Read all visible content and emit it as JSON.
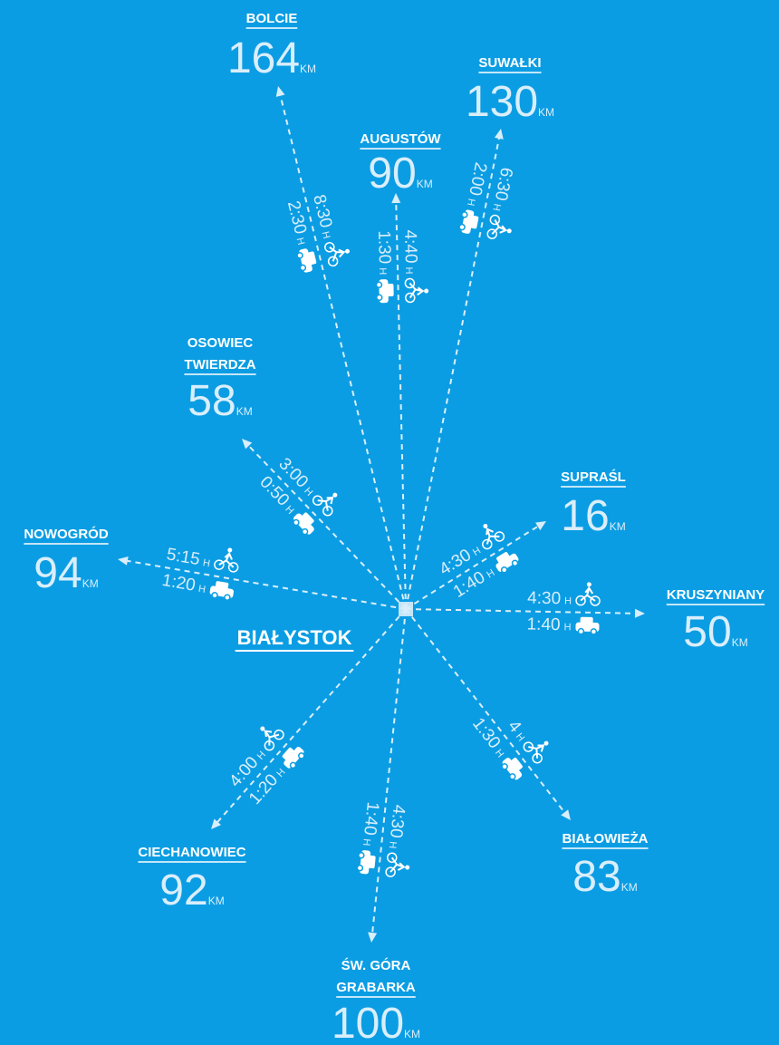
{
  "center": {
    "label": "BIAŁYSTOK"
  },
  "units": {
    "distance": "KM",
    "time": "H"
  },
  "destinations": [
    {
      "name": [
        "BOLCIE"
      ],
      "distance": 164,
      "car": "2:30",
      "bike": "8:30"
    },
    {
      "name": [
        "AUGUSTÓW"
      ],
      "distance": 90,
      "car": "1:30",
      "bike": "4:40"
    },
    {
      "name": [
        "SUWAŁKI"
      ],
      "distance": 130,
      "car": "2:00",
      "bike": "6:30"
    },
    {
      "name": [
        "OSOWIEC",
        "TWIERDZA"
      ],
      "distance": 58,
      "car": "0:50",
      "bike": "3:00"
    },
    {
      "name": [
        "SUPRAŚL"
      ],
      "distance": 16,
      "car": "1:40",
      "bike": "4:30"
    },
    {
      "name": [
        "NOWOGRÓD"
      ],
      "distance": 94,
      "car": "1:20",
      "bike": "5:15"
    },
    {
      "name": [
        "KRUSZYNIANY"
      ],
      "distance": 50,
      "car": "1:40",
      "bike": "4:30"
    },
    {
      "name": [
        "CIECHANOWIEC"
      ],
      "distance": 92,
      "car": "1:20",
      "bike": "4:00"
    },
    {
      "name": [
        "BIAŁOWIEŻA"
      ],
      "distance": 83,
      "car": "1:30",
      "bike": "4"
    },
    {
      "name": [
        "ŚW. GÓRA",
        "GRABARKA"
      ],
      "distance": 100,
      "car": "1:40",
      "bike": "4:30"
    }
  ]
}
